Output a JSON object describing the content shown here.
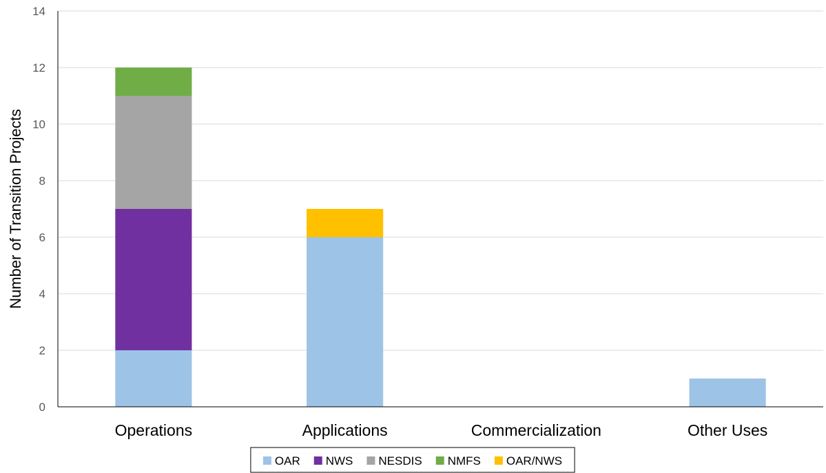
{
  "chart_data": {
    "type": "bar",
    "stacked": true,
    "title": "",
    "xlabel": "",
    "ylabel": "Number of Transition Projects",
    "ylim": [
      0,
      14
    ],
    "yticks": [
      0,
      2,
      4,
      6,
      8,
      10,
      12,
      14
    ],
    "categories": [
      "Operations",
      "Applications",
      "Commercialization",
      "Other Uses"
    ],
    "series": [
      {
        "name": "OAR",
        "color": "#9DC3E6",
        "values": [
          2,
          6,
          0,
          1
        ]
      },
      {
        "name": "NWS",
        "color": "#7030A0",
        "values": [
          5,
          0,
          0,
          0
        ]
      },
      {
        "name": "NESDIS",
        "color": "#A5A5A5",
        "values": [
          4,
          0,
          0,
          0
        ]
      },
      {
        "name": "NMFS",
        "color": "#70AD47",
        "values": [
          1,
          0,
          0,
          0
        ]
      },
      {
        "name": "OAR/NWS",
        "color": "#FFC000",
        "values": [
          0,
          1,
          0,
          0
        ]
      }
    ],
    "grid": true,
    "legend": "bottom"
  }
}
